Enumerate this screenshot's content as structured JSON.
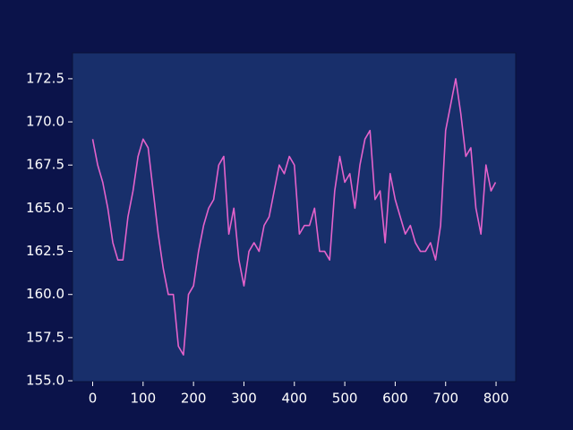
{
  "chart_data": {
    "type": "line",
    "x": [
      0,
      10,
      20,
      30,
      40,
      50,
      60,
      70,
      80,
      90,
      100,
      110,
      120,
      130,
      140,
      150,
      160,
      170,
      180,
      190,
      200,
      210,
      220,
      230,
      240,
      250,
      260,
      270,
      280,
      290,
      300,
      310,
      320,
      330,
      340,
      350,
      360,
      370,
      380,
      390,
      400,
      410,
      420,
      430,
      440,
      450,
      460,
      470,
      480,
      490,
      500,
      510,
      520,
      530,
      540,
      550,
      560,
      570,
      580,
      590,
      600,
      610,
      620,
      630,
      640,
      650,
      660,
      670,
      680,
      690,
      700,
      710,
      720,
      730,
      740,
      750,
      760,
      770,
      780,
      790,
      799
    ],
    "series": [
      {
        "color": "#e462cb",
        "values": [
          169,
          167.5,
          166.5,
          165,
          163,
          162,
          162,
          164.5,
          166,
          168,
          169,
          168.5,
          166,
          163.5,
          161.5,
          160,
          160,
          157,
          156.5,
          160,
          160.5,
          162.5,
          164,
          165,
          165.5,
          167.5,
          168,
          163.5,
          165,
          162,
          160.5,
          162.5,
          163,
          162.5,
          164,
          164.5,
          166,
          167.5,
          167,
          168,
          167.5,
          163.5,
          164,
          164,
          165,
          162.5,
          162.5,
          162,
          166,
          168,
          166.5,
          167,
          165,
          167.5,
          169,
          169.5,
          165.5,
          166,
          163,
          167,
          165.5,
          164.5,
          163.5,
          164,
          163,
          162.5,
          162.5,
          163,
          162,
          164,
          169.5,
          171,
          172.5,
          170.5,
          168,
          168.5,
          165,
          163.5,
          167.5,
          166,
          166.5
        ]
      }
    ],
    "xlim": [
      -39.95,
      838.95
    ],
    "ylim": [
      154.95,
      174.0
    ],
    "xticks": [
      0,
      100,
      200,
      300,
      400,
      500,
      600,
      700,
      800
    ],
    "yticks": [
      {
        "value": 155,
        "label": "155.0"
      },
      {
        "value": 157.5,
        "label": "157.5"
      },
      {
        "value": 160,
        "label": "160.0"
      },
      {
        "value": 162.5,
        "label": "162.5"
      },
      {
        "value": 165,
        "label": "165.0"
      },
      {
        "value": 167.5,
        "label": "167.5"
      },
      {
        "value": 170,
        "label": "170.0"
      },
      {
        "value": 172.5,
        "label": "172.5"
      }
    ]
  }
}
